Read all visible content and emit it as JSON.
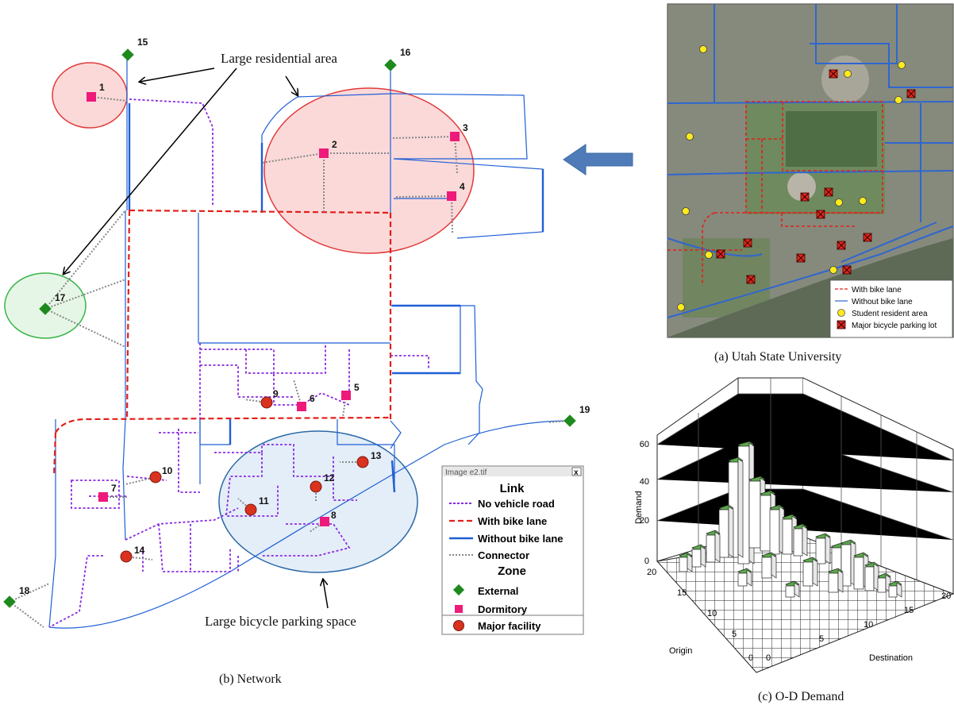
{
  "network": {
    "caption": "(b) Network",
    "annotations": {
      "residential": "Large residential area",
      "parking": "Large bicycle parking space"
    },
    "nodes": [
      {
        "id": "1"
      },
      {
        "id": "2"
      },
      {
        "id": "3"
      },
      {
        "id": "4"
      },
      {
        "id": "5"
      },
      {
        "id": "6"
      },
      {
        "id": "7"
      },
      {
        "id": "8"
      },
      {
        "id": "9"
      },
      {
        "id": "10"
      },
      {
        "id": "11"
      },
      {
        "id": "12"
      },
      {
        "id": "13"
      },
      {
        "id": "14"
      },
      {
        "id": "15"
      },
      {
        "id": "16"
      },
      {
        "id": "17"
      },
      {
        "id": "18"
      },
      {
        "id": "19"
      }
    ],
    "legend": {
      "window_title": "Image e2.tif",
      "close": "x",
      "link_heading": "Link",
      "links": [
        "No vehicle road",
        "With bike lane",
        "Without bike lane",
        "Connector"
      ],
      "zone_heading": "Zone",
      "zones": [
        "External",
        "Dormitory",
        "Major facility"
      ]
    }
  },
  "map": {
    "caption": "(a) Utah State University",
    "legend": [
      "With bike lane",
      "Without bike lane",
      "Student resident area",
      "Major bicycle parking lot"
    ]
  },
  "od": {
    "caption": "(c) O-D Demand",
    "ylabel": "Demand",
    "origin_label": "Origin",
    "destination_label": "Destination",
    "z_ticks": [
      "0",
      "20",
      "40",
      "60"
    ],
    "origin_ticks": [
      "0",
      "5",
      "10",
      "15",
      "20"
    ],
    "dest_ticks": [
      "0",
      "5",
      "10",
      "15",
      "20"
    ]
  },
  "colors": {
    "no_vehicle": "#8a2be2",
    "bike_lane": "#e3201b",
    "no_bike_lane": "#1f5fd6",
    "connector": "#888888",
    "external": "#1e8a1e",
    "dormitory": "#ee1a7a",
    "facility": "#d9321f"
  }
}
